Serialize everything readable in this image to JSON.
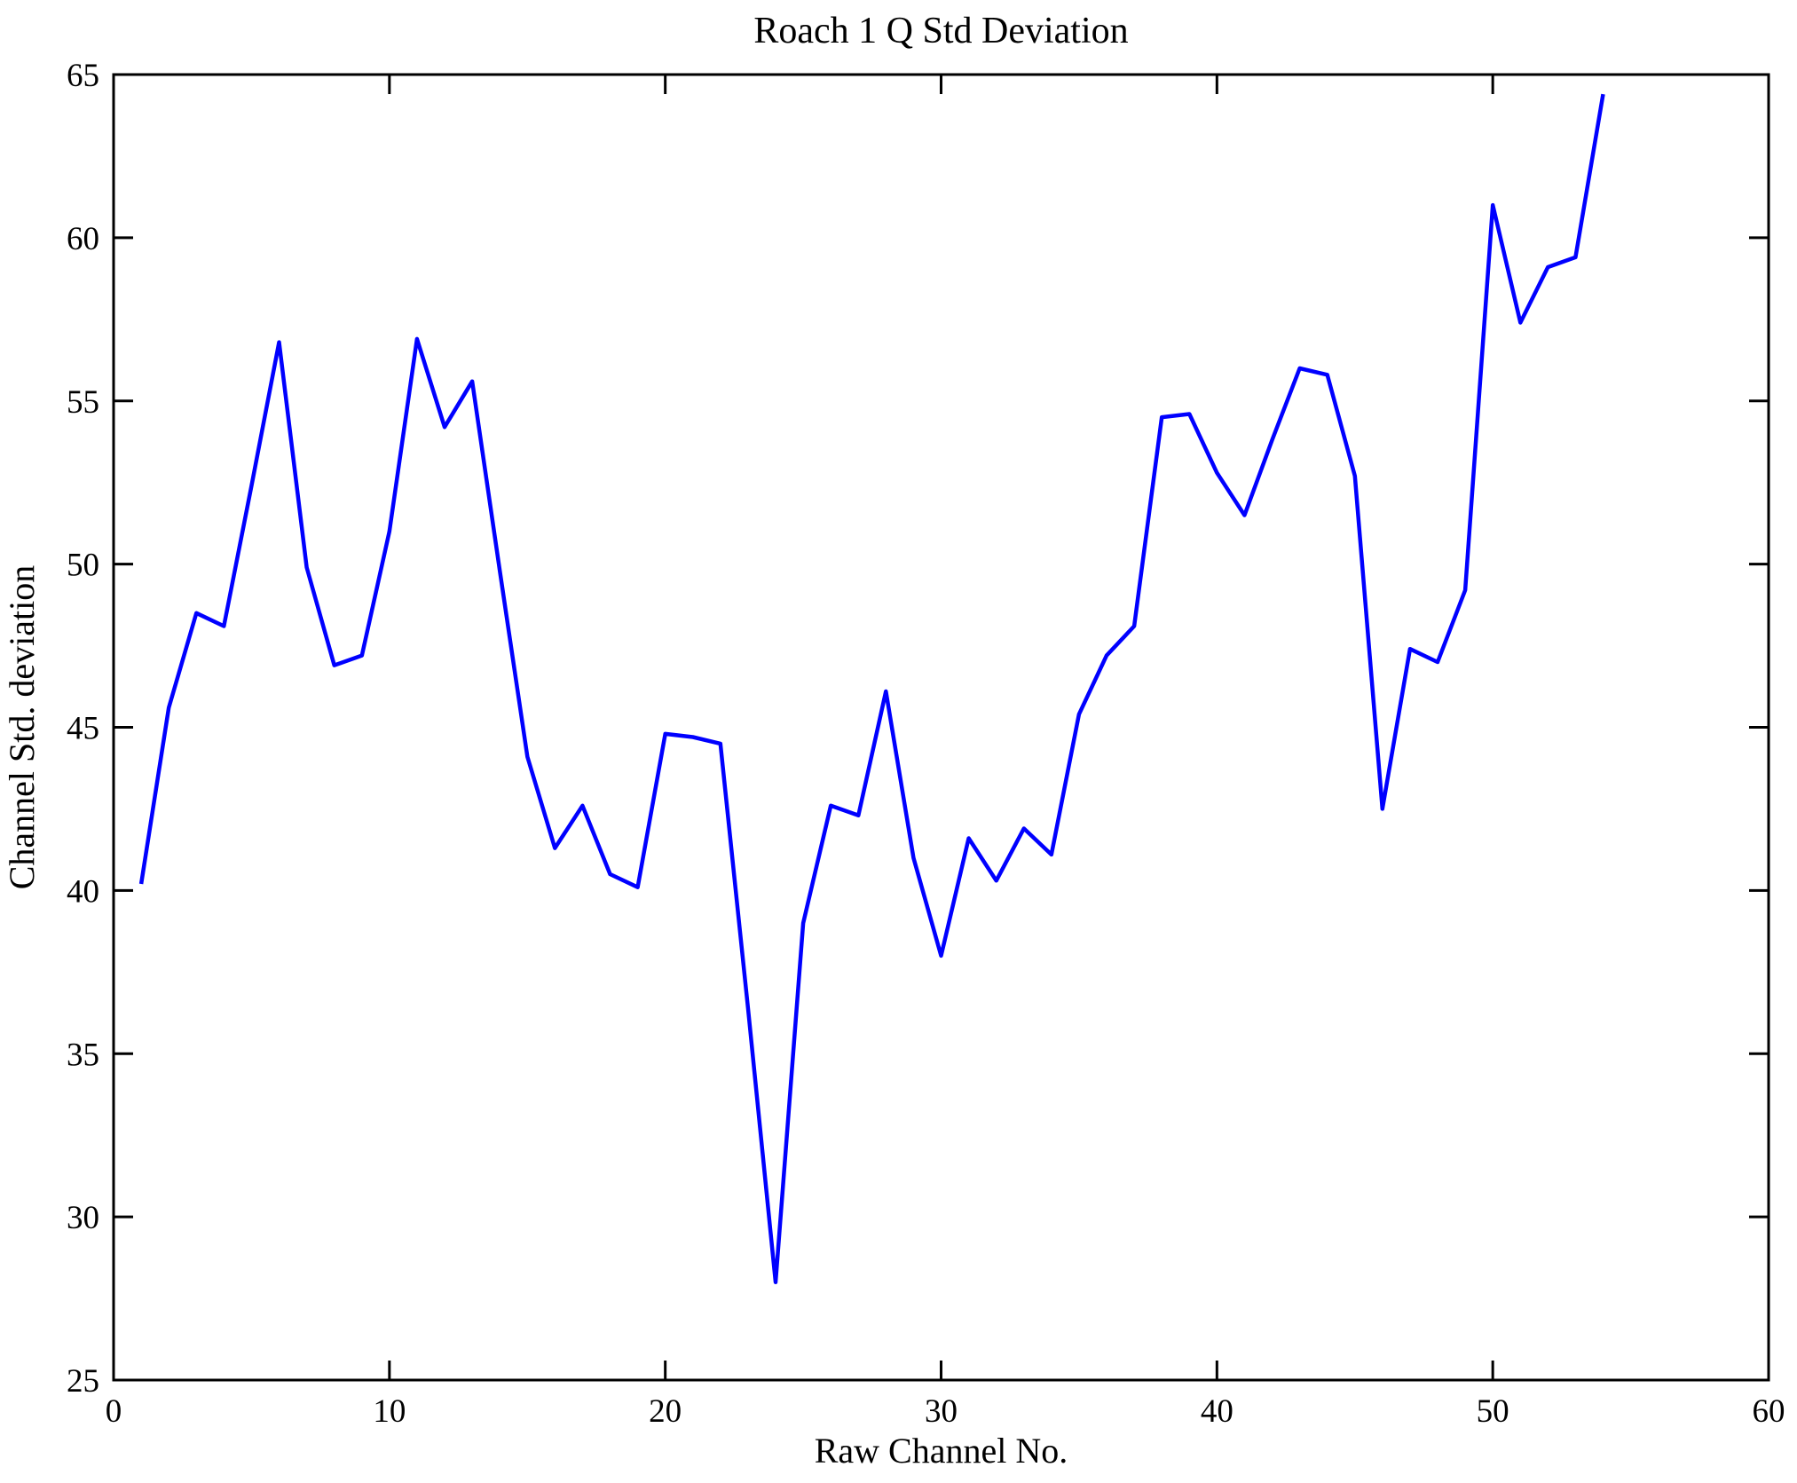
{
  "chart_data": {
    "type": "line",
    "title": "Roach 1 Q Std Deviation",
    "xlabel": "Raw Channel No.",
    "ylabel": "Channel Std. deviation",
    "xlim": [
      0,
      60
    ],
    "ylim": [
      25,
      65
    ],
    "xticks": [
      0,
      10,
      20,
      30,
      40,
      50,
      60
    ],
    "yticks": [
      25,
      30,
      35,
      40,
      45,
      50,
      55,
      60,
      65
    ],
    "grid": false,
    "legend": null,
    "line_color": "#0000FF",
    "axis_color": "#000000",
    "background_color": "#FFFFFF",
    "series": [
      {
        "name": "Channel Std deviation",
        "x": [
          1,
          2,
          3,
          4,
          5,
          6,
          7,
          8,
          9,
          10,
          11,
          12,
          13,
          14,
          15,
          16,
          17,
          18,
          19,
          20,
          21,
          22,
          23,
          24,
          25,
          26,
          27,
          28,
          29,
          30,
          31,
          32,
          33,
          34,
          35,
          36,
          37,
          38,
          39,
          40,
          41,
          42,
          43,
          44,
          45,
          46,
          47,
          48,
          49,
          50,
          51,
          52,
          53,
          54
        ],
        "y": [
          40.2,
          45.6,
          48.5,
          48.1,
          52.4,
          56.8,
          49.9,
          46.9,
          47.2,
          51.0,
          56.9,
          54.2,
          55.6,
          49.8,
          44.1,
          41.3,
          42.6,
          40.5,
          40.1,
          44.8,
          44.7,
          44.5,
          36.4,
          28.0,
          39.0,
          42.6,
          42.3,
          46.1,
          41.0,
          38.0,
          41.6,
          40.3,
          41.9,
          41.1,
          45.4,
          47.2,
          48.1,
          54.5,
          54.6,
          52.8,
          51.5,
          53.8,
          56.0,
          55.8,
          52.7,
          42.5,
          47.4,
          47.0,
          49.2,
          61.0,
          57.4,
          59.1,
          59.4,
          64.4
        ]
      }
    ]
  }
}
